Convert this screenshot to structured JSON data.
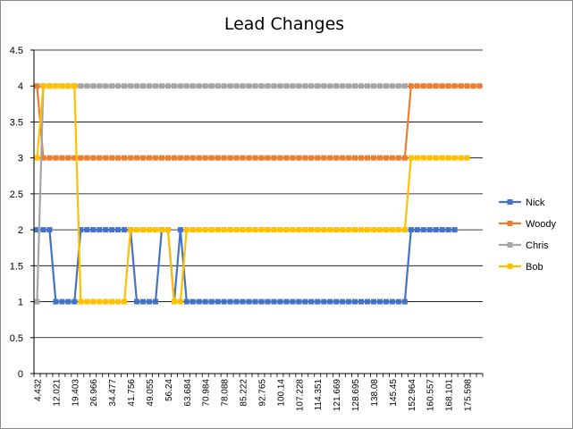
{
  "chart_data": {
    "type": "line",
    "title": "Lead Changes",
    "xlabel": "",
    "ylabel": "",
    "ylim": [
      0,
      4.5
    ],
    "yticks": [
      "0",
      "0.5",
      "1",
      "1.5",
      "2",
      "2.5",
      "3",
      "3.5",
      "4",
      "4.5"
    ],
    "grid": true,
    "legend_position": "right",
    "x_tick_labels": [
      "4.432",
      "12.021",
      "19.403",
      "26.966",
      "34.477",
      "41.756",
      "49.055",
      "56.24",
      "63.684",
      "70.984",
      "78.088",
      "85.222",
      "92.765",
      "100.14",
      "107.228",
      "114.351",
      "121.669",
      "128.695",
      "138.08",
      "145.45",
      "152.964",
      "160.557",
      "168.101",
      "175.598"
    ],
    "series": [
      {
        "name": "Nick",
        "color": "#4472C4",
        "values": [
          2,
          2,
          2,
          1,
          1,
          1,
          1,
          2,
          2,
          2,
          2,
          2,
          2,
          2,
          2,
          2,
          1,
          1,
          1,
          1,
          2,
          2,
          1,
          2,
          1,
          1,
          1,
          1,
          1,
          1,
          1,
          1,
          1,
          1,
          1,
          1,
          1,
          1,
          1,
          1,
          1,
          1,
          1,
          1,
          1,
          1,
          1,
          1,
          1,
          1,
          1,
          1,
          1,
          1,
          1,
          1,
          1,
          1,
          1,
          1,
          2,
          2,
          2,
          2,
          2,
          2,
          2,
          2
        ]
      },
      {
        "name": "Woody",
        "color": "#ED7D31",
        "values": [
          4,
          3,
          3,
          3,
          3,
          3,
          3,
          3,
          3,
          3,
          3,
          3,
          3,
          3,
          3,
          3,
          3,
          3,
          3,
          3,
          3,
          3,
          3,
          3,
          3,
          3,
          3,
          3,
          3,
          3,
          3,
          3,
          3,
          3,
          3,
          3,
          3,
          3,
          3,
          3,
          3,
          3,
          3,
          3,
          3,
          3,
          3,
          3,
          3,
          3,
          3,
          3,
          3,
          3,
          3,
          3,
          3,
          3,
          3,
          3,
          4,
          4,
          4,
          4,
          4,
          4,
          4,
          4,
          4,
          4,
          4,
          4
        ]
      },
      {
        "name": "Chris",
        "color": "#A5A5A5",
        "values": [
          1,
          4,
          4,
          4,
          4,
          4,
          4,
          4,
          4,
          4,
          4,
          4,
          4,
          4,
          4,
          4,
          4,
          4,
          4,
          4,
          4,
          4,
          4,
          4,
          4,
          4,
          4,
          4,
          4,
          4,
          4,
          4,
          4,
          4,
          4,
          4,
          4,
          4,
          4,
          4,
          4,
          4,
          4,
          4,
          4,
          4,
          4,
          4,
          4,
          4,
          4,
          4,
          4,
          4,
          4,
          4,
          4,
          4,
          4,
          4
        ]
      },
      {
        "name": "Bob",
        "color": "#FFC000",
        "values": [
          3,
          4,
          4,
          4,
          4,
          4,
          4,
          1,
          1,
          1,
          1,
          1,
          1,
          1,
          1,
          2,
          2,
          2,
          2,
          2,
          2,
          2,
          1,
          1,
          2,
          2,
          2,
          2,
          2,
          2,
          2,
          2,
          2,
          2,
          2,
          2,
          2,
          2,
          2,
          2,
          2,
          2,
          2,
          2,
          2,
          2,
          2,
          2,
          2,
          2,
          2,
          2,
          2,
          2,
          2,
          2,
          2,
          2,
          2,
          2,
          3,
          3,
          3,
          3,
          3,
          3,
          3,
          3,
          3,
          3
        ]
      }
    ]
  }
}
